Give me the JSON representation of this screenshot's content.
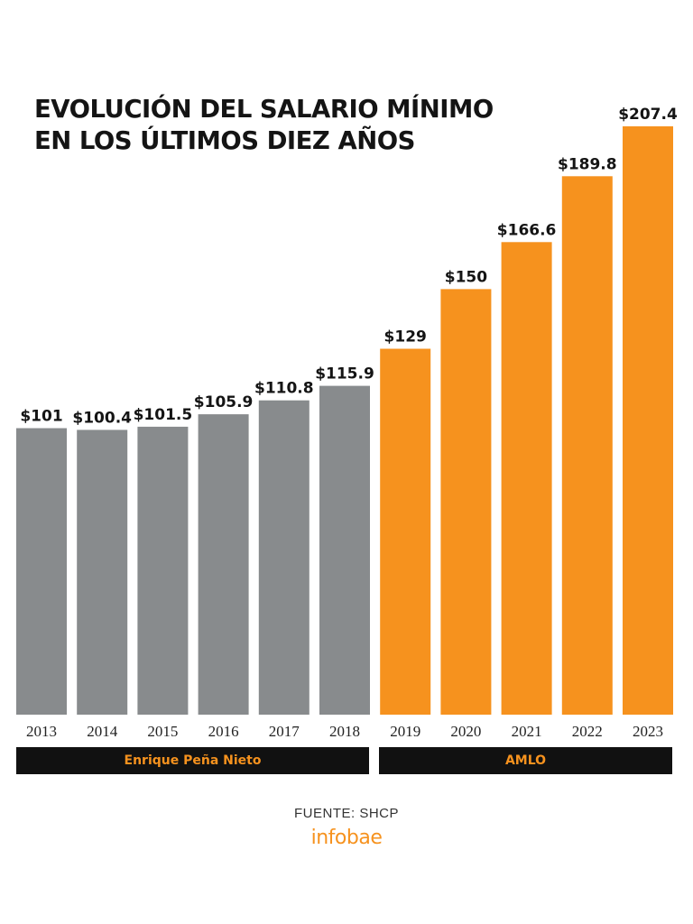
{
  "chart_data": {
    "type": "bar",
    "title": "EVOLUCIÓN DEL SALARIO MÍNIMO EN LOS ÚLTIMOS DIEZ AÑOS",
    "title_lines": [
      "EVOLUCIÓN DEL SALARIO MÍNIMO",
      "EN LOS ÚLTIMOS DIEZ AÑOS"
    ],
    "xlabel": "",
    "ylabel": "",
    "categories": [
      "2013",
      "2014",
      "2015",
      "2016",
      "2017",
      "2018",
      "2019",
      "2020",
      "2021",
      "2022",
      "2023"
    ],
    "values": [
      101,
      100.4,
      101.5,
      105.9,
      110.8,
      115.9,
      129,
      150,
      166.6,
      189.8,
      207.4
    ],
    "value_labels": [
      "$101",
      "$100.4",
      "$101.5",
      "$105.9",
      "$110.8",
      "$115.9",
      "$129",
      "$150",
      "$166.6",
      "$189.8",
      "$207.4"
    ],
    "ylim": [
      0,
      207.4
    ],
    "grid": false,
    "legend": "none",
    "groups": [
      {
        "label": "Enrique Peña Nieto",
        "categories": [
          "2013",
          "2014",
          "2015",
          "2016",
          "2017",
          "2018"
        ],
        "color": "#888b8d"
      },
      {
        "label": "AMLO",
        "categories": [
          "2019",
          "2020",
          "2021",
          "2022",
          "2023"
        ],
        "color": "#f6921e"
      }
    ]
  },
  "colors": {
    "bar_gray": "#888b8d",
    "bar_orange": "#f6921e",
    "band": "#111111",
    "band_text": "#f6921e",
    "text": "#141414"
  },
  "source": "FUENTE: SHCP",
  "brand": "infobae"
}
